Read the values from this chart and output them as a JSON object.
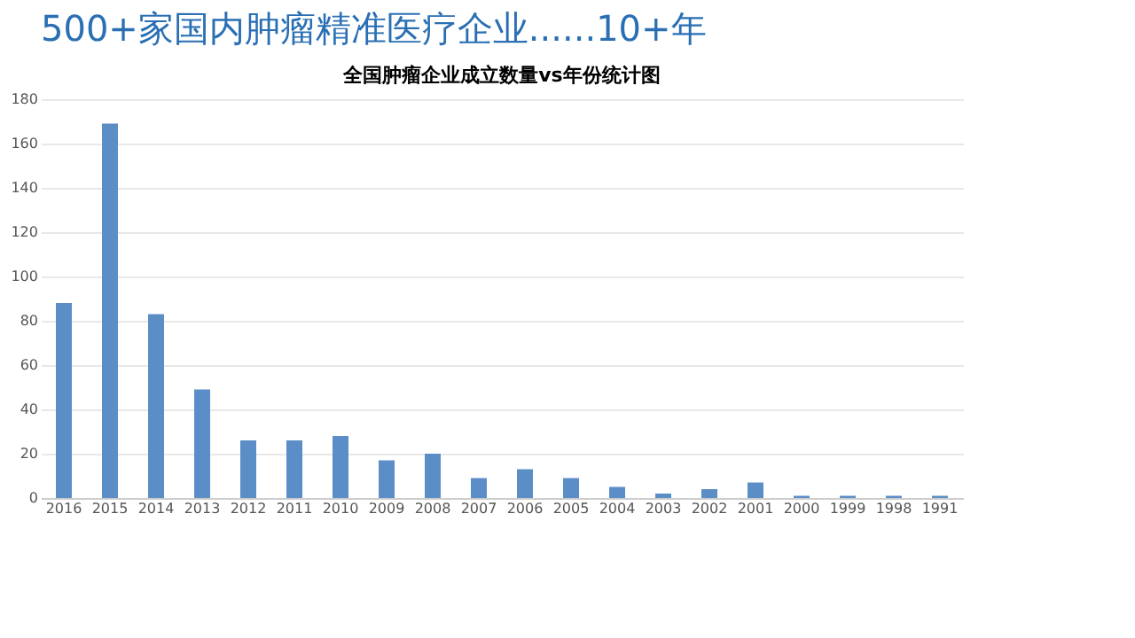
{
  "chart_data": {
    "type": "bar",
    "title": "500+家国内肿瘤精准医疗企业......10+年",
    "subtitle": "全国肿瘤企业成立数量vs年份统计图",
    "categories": [
      "2016",
      "2015",
      "2014",
      "2013",
      "2012",
      "2011",
      "2010",
      "2009",
      "2008",
      "2007",
      "2006",
      "2005",
      "2004",
      "2003",
      "2002",
      "2001",
      "2000",
      "1999",
      "1998",
      "1991"
    ],
    "values": [
      88,
      169,
      83,
      49,
      26,
      26,
      28,
      17,
      20,
      9,
      13,
      9,
      5,
      2,
      4,
      7,
      1,
      1,
      1,
      1
    ],
    "color": "#5b8ec7",
    "ylim": [
      0,
      180
    ],
    "yticks": [
      0,
      20,
      40,
      60,
      80,
      100,
      120,
      140,
      160,
      180
    ],
    "grid": "y"
  }
}
